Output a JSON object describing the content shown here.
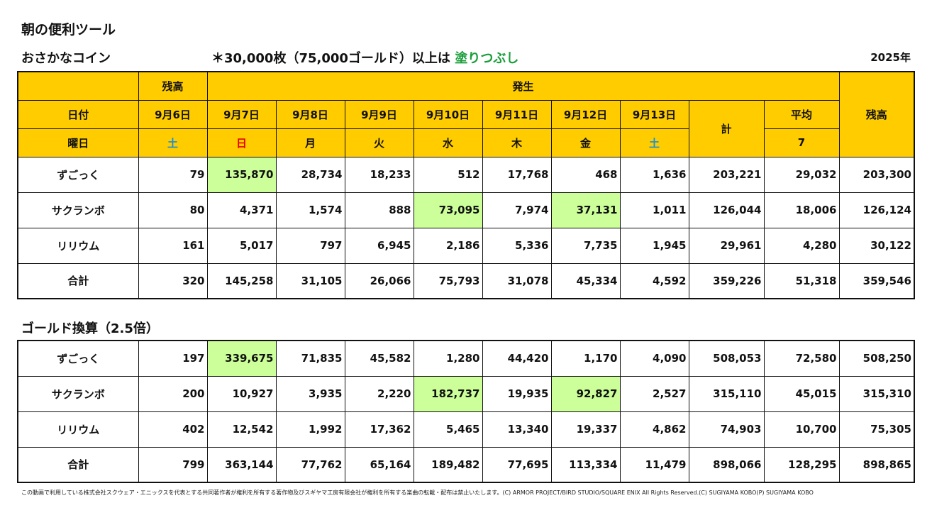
{
  "header": {
    "page_title": "朝の便利ツール",
    "section_title": "おさかなコイン",
    "note_prefix": "＊30,000枚（75,000ゴールド）以上は",
    "note_highlight": "塗りつぶし",
    "year": "2025年"
  },
  "colors": {
    "header_bg": "#ffcc00",
    "highlight_bg": "#ccff99",
    "saturday": "#1a8fd6",
    "sunday": "#e60000",
    "note_highlight": "#1a9e3a"
  },
  "coin_table": {
    "h_balance": "残高",
    "h_occurrence": "発生",
    "h_date": "日付",
    "h_weekday": "曜日",
    "h_total": "計",
    "h_average": "平均",
    "h_avg_days": "7",
    "h_balance_end": "残高",
    "dates": [
      "9月6日",
      "9月7日",
      "9月8日",
      "9月9日",
      "9月10日",
      "9月11日",
      "9月12日",
      "9月13日"
    ],
    "weekdays": [
      "土",
      "日",
      "月",
      "火",
      "水",
      "木",
      "金",
      "土"
    ],
    "rows": [
      {
        "name": "ずごっく",
        "values": [
          "79",
          "135,870",
          "28,734",
          "18,233",
          "512",
          "17,768",
          "468",
          "1,636",
          "203,221",
          "29,032",
          "203,300"
        ]
      },
      {
        "name": "サクランボ",
        "values": [
          "80",
          "4,371",
          "1,574",
          "888",
          "73,095",
          "7,974",
          "37,131",
          "1,011",
          "126,044",
          "18,006",
          "126,124"
        ]
      },
      {
        "name": "リリウム",
        "values": [
          "161",
          "5,017",
          "797",
          "6,945",
          "2,186",
          "5,336",
          "7,735",
          "1,945",
          "29,961",
          "4,280",
          "30,122"
        ]
      },
      {
        "name": "合計",
        "values": [
          "320",
          "145,258",
          "31,105",
          "26,066",
          "75,793",
          "31,078",
          "45,334",
          "4,592",
          "359,226",
          "51,318",
          "359,546"
        ]
      }
    ]
  },
  "gold_section": {
    "title": "ゴールド換算（2.5倍）",
    "rows": [
      {
        "name": "ずごっく",
        "values": [
          "197",
          "339,675",
          "71,835",
          "45,582",
          "1,280",
          "44,420",
          "1,170",
          "4,090",
          "508,053",
          "72,580",
          "508,250"
        ]
      },
      {
        "name": "サクランボ",
        "values": [
          "200",
          "10,927",
          "3,935",
          "2,220",
          "182,737",
          "19,935",
          "92,827",
          "2,527",
          "315,110",
          "45,015",
          "315,310"
        ]
      },
      {
        "name": "リリウム",
        "values": [
          "402",
          "12,542",
          "1,992",
          "17,362",
          "5,465",
          "13,340",
          "19,337",
          "4,862",
          "74,903",
          "10,700",
          "75,305"
        ]
      },
      {
        "name": "合計",
        "values": [
          "799",
          "363,144",
          "77,762",
          "65,164",
          "189,482",
          "77,695",
          "113,334",
          "11,479",
          "898,066",
          "128,295",
          "898,865"
        ]
      }
    ]
  },
  "footer": {
    "copyright": "この動画で利用している株式会社スクウェア・エニックスを代表とする共同著作者が権利を所有する著作物及びスギヤマ工房有限会社が権利を所有する楽曲の転載・配布は禁止いたします。(C) ARMOR PROJECT/BIRD STUDIO/SQUARE ENIX All Rights Reserved.(C) SUGIYAMA KOBO(P) SUGIYAMA KOBO"
  }
}
